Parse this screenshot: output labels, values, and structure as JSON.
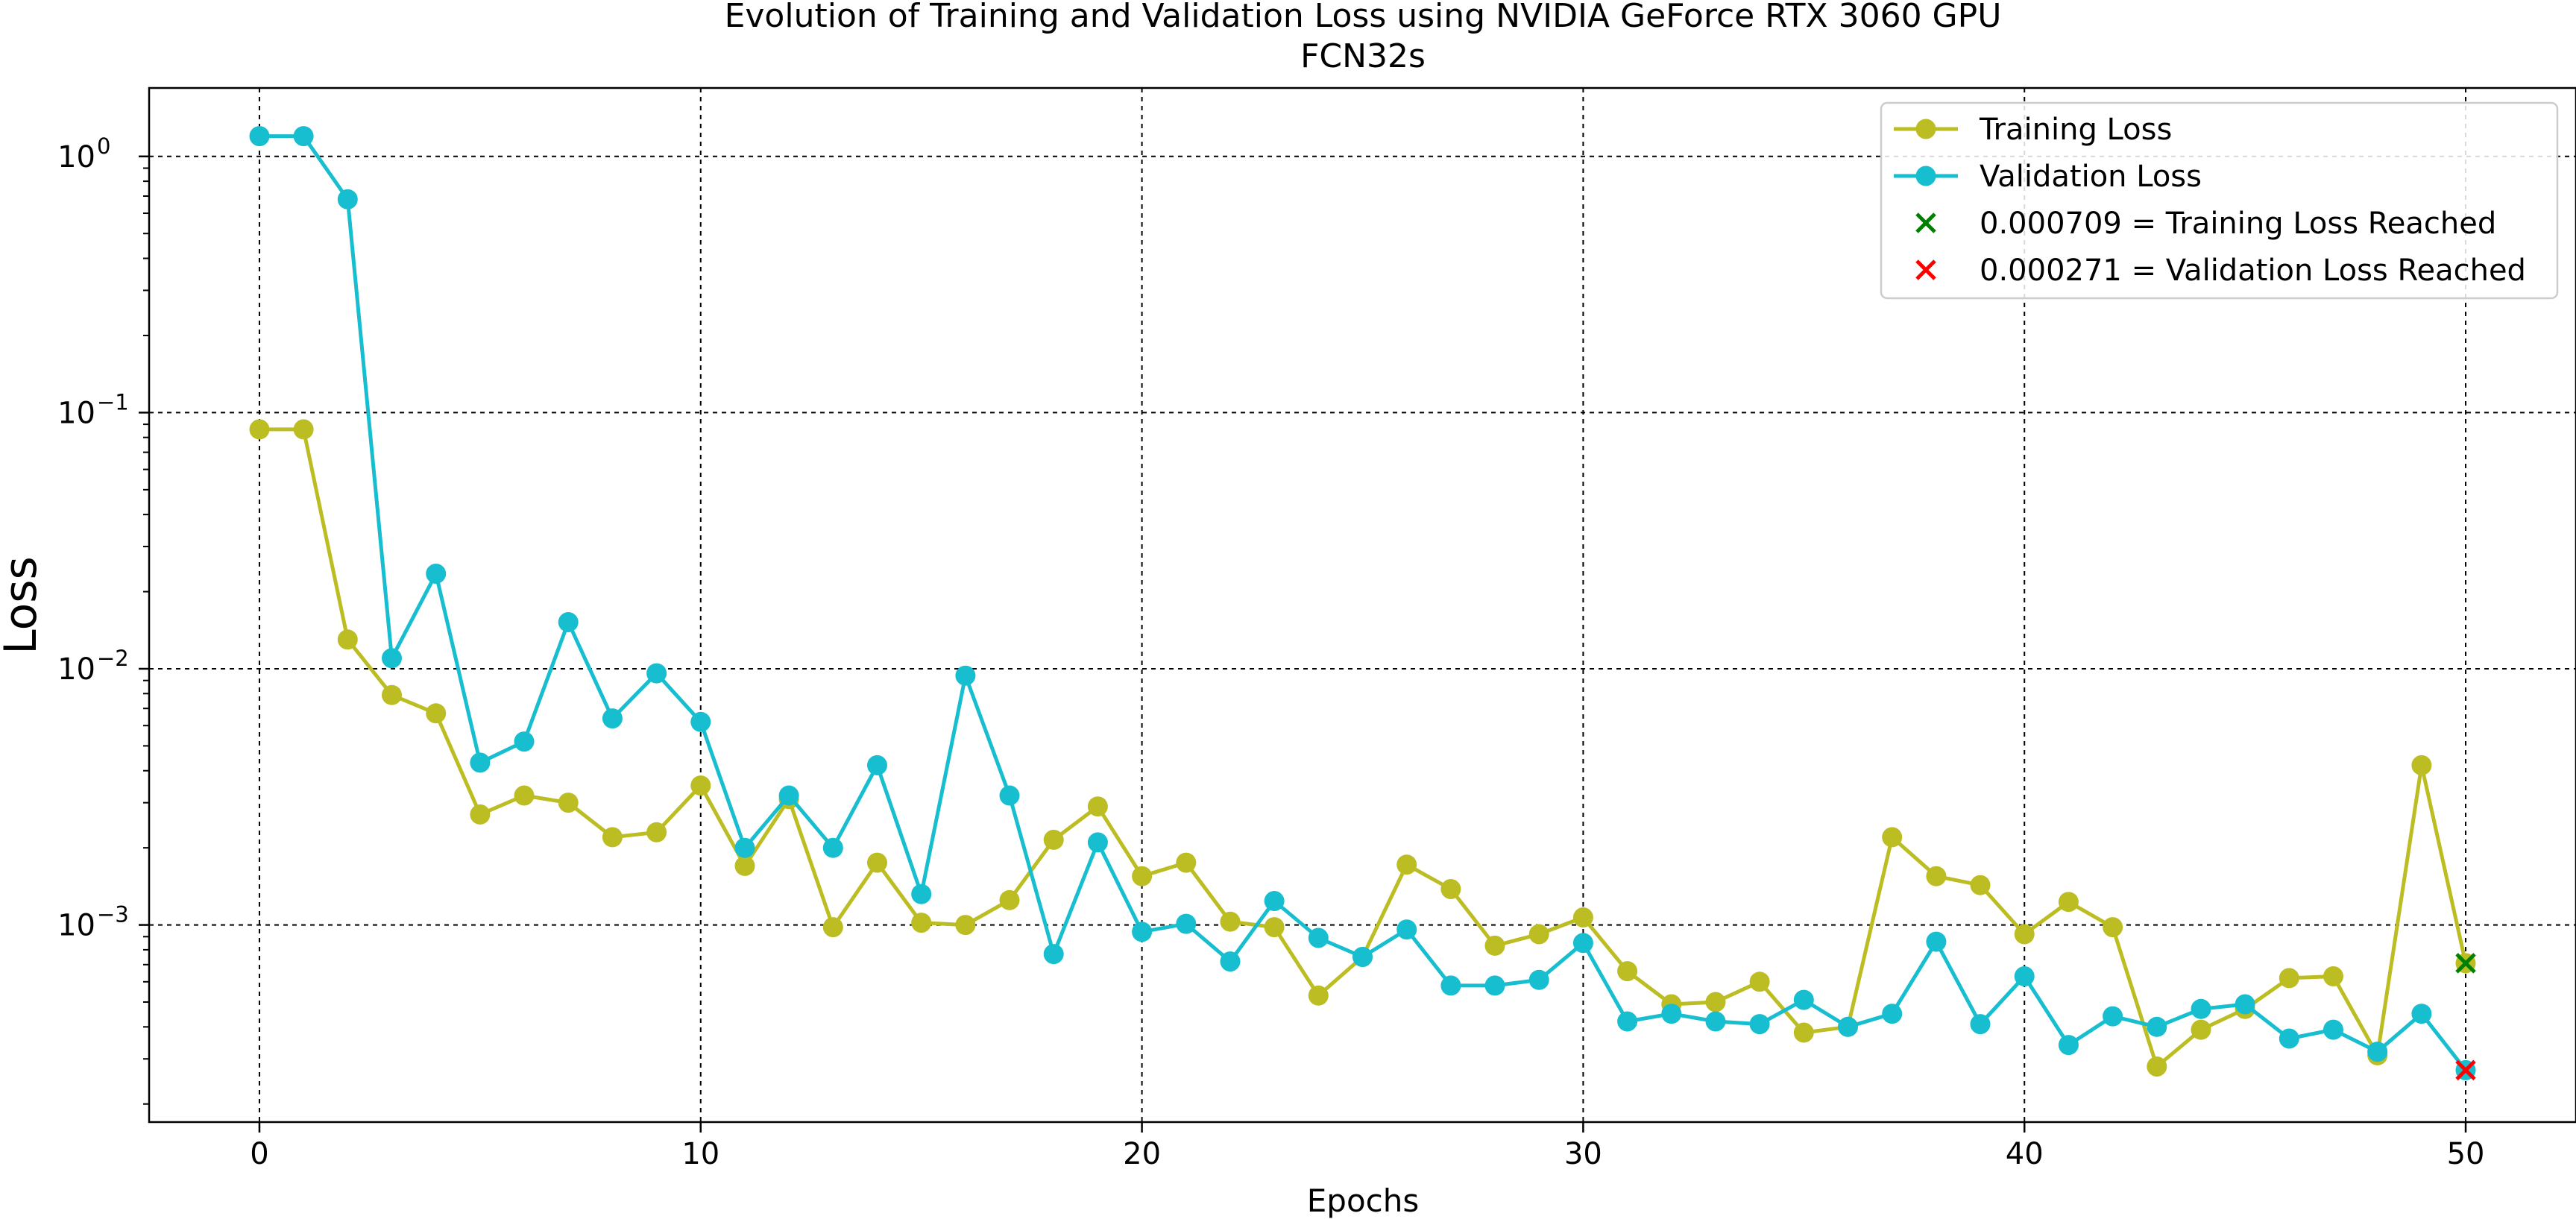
{
  "chart_data": {
    "type": "line",
    "title": "Evolution of Training and Validation Loss using NVIDIA GeForce RTX 3060 GPU",
    "subtitle": "FCN32s",
    "xlabel": "Epochs",
    "ylabel": "Loss",
    "xlim": [
      -2.5,
      52.5
    ],
    "ylim": [
      0.00017,
      1.85
    ],
    "yscale": "log",
    "grid": true,
    "legend": {
      "position": "top-right"
    },
    "xticks": [
      {
        "value": 0,
        "label": "0"
      },
      {
        "value": 10,
        "label": "10"
      },
      {
        "value": 20,
        "label": "20"
      },
      {
        "value": 30,
        "label": "30"
      },
      {
        "value": 40,
        "label": "40"
      },
      {
        "value": 50,
        "label": "50"
      }
    ],
    "yticks": [
      {
        "value": 1,
        "base": "10",
        "exp": "0"
      },
      {
        "value": 0.1,
        "base": "10",
        "exp": "−1"
      },
      {
        "value": 0.01,
        "base": "10",
        "exp": "−2"
      },
      {
        "value": 0.001,
        "base": "10",
        "exp": "−3"
      }
    ],
    "series": [
      {
        "name": "Training Loss",
        "color": "#bcbd22",
        "x": [
          0,
          1,
          2,
          3,
          4,
          5,
          6,
          7,
          8,
          9,
          10,
          11,
          12,
          13,
          14,
          15,
          16,
          17,
          18,
          19,
          20,
          21,
          22,
          23,
          24,
          25,
          26,
          27,
          28,
          29,
          30,
          31,
          32,
          33,
          34,
          35,
          36,
          37,
          38,
          39,
          40,
          41,
          42,
          43,
          44,
          45,
          46,
          47,
          48,
          49,
          50
        ],
        "y": [
          0.086,
          0.086,
          0.013,
          0.0079,
          0.0067,
          0.0027,
          0.0032,
          0.003,
          0.0022,
          0.0023,
          0.0035,
          0.0017,
          0.0031,
          0.00098,
          0.00175,
          0.00102,
          0.001,
          0.00125,
          0.00215,
          0.0029,
          0.00155,
          0.00175,
          0.00103,
          0.00098,
          0.00053,
          0.00075,
          0.00172,
          0.00138,
          0.00083,
          0.00092,
          0.00107,
          0.00066,
          0.00049,
          0.0005,
          0.0006,
          0.00038,
          0.0004,
          0.0022,
          0.00155,
          0.00143,
          0.00092,
          0.00123,
          0.00098,
          0.00028,
          0.00039,
          0.00047,
          0.00062,
          0.00063,
          0.00031,
          0.0042,
          0.000709
        ]
      },
      {
        "name": "Validation Loss",
        "color": "#17becf",
        "x": [
          0,
          1,
          2,
          3,
          4,
          5,
          6,
          7,
          8,
          9,
          10,
          11,
          12,
          13,
          14,
          15,
          16,
          17,
          18,
          19,
          20,
          21,
          22,
          23,
          24,
          25,
          26,
          27,
          28,
          29,
          30,
          31,
          32,
          33,
          34,
          35,
          36,
          37,
          38,
          39,
          40,
          41,
          42,
          43,
          44,
          45,
          46,
          47,
          48,
          49,
          50
        ],
        "y": [
          1.2,
          1.2,
          0.68,
          0.011,
          0.0235,
          0.0043,
          0.0052,
          0.0152,
          0.0064,
          0.0096,
          0.0062,
          0.002,
          0.0032,
          0.002,
          0.0042,
          0.00132,
          0.0094,
          0.0032,
          0.00077,
          0.0021,
          0.00094,
          0.00101,
          0.00072,
          0.00124,
          0.00089,
          0.00075,
          0.00096,
          0.00058,
          0.00058,
          0.00061,
          0.00085,
          0.00042,
          0.00045,
          0.00042,
          0.00041,
          0.00051,
          0.0004,
          0.00045,
          0.00086,
          0.00041,
          0.00063,
          0.00034,
          0.00044,
          0.0004,
          0.00047,
          0.00049,
          0.00036,
          0.00039,
          0.00032,
          0.00045,
          0.000271
        ]
      }
    ],
    "markers": [
      {
        "label": "0.000709 = Training Loss Reached",
        "x": 50,
        "y": 0.000709,
        "color": "#008000",
        "shape": "x"
      },
      {
        "label": "0.000271 = Validation Loss Reached",
        "x": 50,
        "y": 0.000271,
        "color": "#ff0000",
        "shape": "x"
      }
    ]
  }
}
